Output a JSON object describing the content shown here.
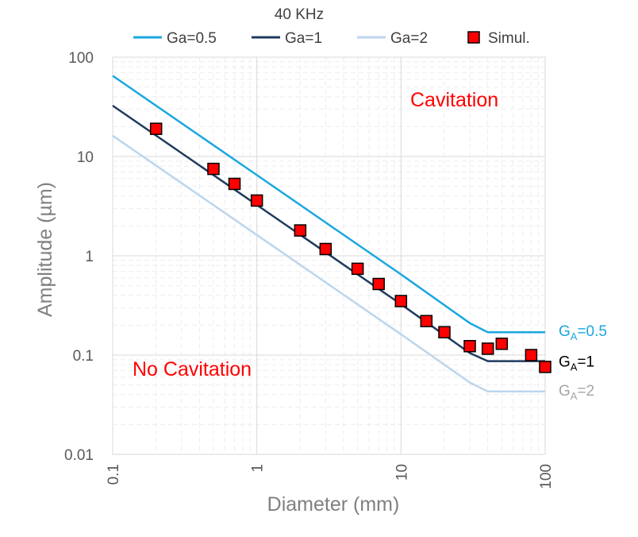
{
  "chart_data": {
    "type": "line",
    "title": "40 KHz",
    "xlabel": "Diameter (mm)",
    "ylabel": "Amplitude (µm)",
    "xscale": "log",
    "yscale": "log",
    "xlim": [
      0.1,
      100
    ],
    "ylim": [
      0.01,
      100
    ],
    "x_ticks": [
      "0.1",
      "1",
      "10",
      "100"
    ],
    "y_ticks": [
      "0.01",
      "0.1",
      "1",
      "10",
      "100"
    ],
    "grid": true,
    "legend_position": "top",
    "series": [
      {
        "name": "Ga=0.5",
        "kind": "line",
        "color": "#1aa7e0",
        "end_label": {
          "base": "G",
          "sub": "A",
          "rest": "=0.5"
        },
        "points": [
          [
            0.1,
            65
          ],
          [
            1,
            6.5
          ],
          [
            10,
            0.65
          ],
          [
            30,
            0.21
          ],
          [
            40,
            0.17
          ],
          [
            100,
            0.17
          ]
        ]
      },
      {
        "name": "Ga=1",
        "kind": "line",
        "color": "#1f3b5e",
        "end_label": {
          "base": "G",
          "sub": "A",
          "rest": "=1"
        },
        "points": [
          [
            0.1,
            32.5
          ],
          [
            1,
            3.25
          ],
          [
            10,
            0.325
          ],
          [
            30,
            0.105
          ],
          [
            40,
            0.087
          ],
          [
            100,
            0.087
          ]
        ]
      },
      {
        "name": "Ga=2",
        "kind": "line",
        "color": "#bcd6ec",
        "end_label": {
          "base": "G",
          "sub": "A",
          "rest": "=2"
        },
        "points": [
          [
            0.1,
            16.2
          ],
          [
            1,
            1.62
          ],
          [
            10,
            0.162
          ],
          [
            30,
            0.053
          ],
          [
            40,
            0.043
          ],
          [
            100,
            0.043
          ]
        ]
      },
      {
        "name": "Simul.",
        "kind": "marker",
        "color": "#ff0000",
        "points": [
          [
            0.2,
            19
          ],
          [
            0.5,
            7.5
          ],
          [
            0.7,
            5.3
          ],
          [
            1,
            3.6
          ],
          [
            2,
            1.8
          ],
          [
            3,
            1.17
          ],
          [
            5,
            0.74
          ],
          [
            7,
            0.52
          ],
          [
            10,
            0.35
          ],
          [
            15,
            0.22
          ],
          [
            20,
            0.17
          ],
          [
            30,
            0.123
          ],
          [
            40,
            0.116
          ],
          [
            50,
            0.13
          ],
          [
            80,
            0.1
          ],
          [
            100,
            0.076
          ]
        ]
      }
    ],
    "annotations": [
      "Cavitation",
      "No Cavitation"
    ]
  }
}
